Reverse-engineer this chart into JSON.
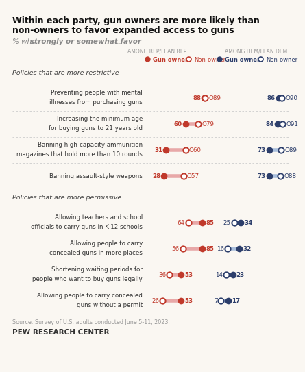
{
  "title_line1": "Within each party, gun owners are more likely than",
  "title_line2": "non-owners to favor expanded access to guns",
  "subtitle_plain": "% who ",
  "subtitle_bold_italic": "strongly or somewhat favor",
  "subtitle_end": " ...",
  "legend_left_label": "AMONG REP/LEAN REP",
  "legend_right_label": "AMONG DEM/LEAN DEM",
  "rep_gun_color": "#c0392b",
  "rep_nonown_color": "#e8a8a8",
  "dem_gun_color": "#2c3e6b",
  "dem_nonown_color": "#a8bedc",
  "section1_label": "Policies that are more restrictive",
  "section2_label": "Policies that are more permissive",
  "policies": [
    {
      "label_line1": "Preventing people with mental",
      "label_line2": "illnesses from purchasing guns",
      "rep_gun": 88,
      "rep_nonown": 89,
      "dem_gun": 86,
      "dem_nonown": 90,
      "section": 1
    },
    {
      "label_line1": "Increasing the minimum age",
      "label_line2": "for buying guns to 21 years old",
      "rep_gun": 60,
      "rep_nonown": 79,
      "dem_gun": 84,
      "dem_nonown": 91,
      "section": 1
    },
    {
      "label_line1": "Banning high-capacity ammunition",
      "label_line2": "magazines that hold more than 10 rounds",
      "rep_gun": 31,
      "rep_nonown": 60,
      "dem_gun": 73,
      "dem_nonown": 89,
      "section": 1
    },
    {
      "label_line1": "Banning assault-style weapons",
      "label_line2": "",
      "rep_gun": 28,
      "rep_nonown": 57,
      "dem_gun": 73,
      "dem_nonown": 88,
      "section": 1
    },
    {
      "label_line1": "Allowing teachers and school",
      "label_line2": "officials to carry guns in K-12 schools",
      "rep_gun": 85,
      "rep_nonown": 64,
      "dem_gun": 34,
      "dem_nonown": 25,
      "section": 2
    },
    {
      "label_line1": "Allowing people to carry",
      "label_line2": "concealed guns in more places",
      "rep_gun": 85,
      "rep_nonown": 56,
      "dem_gun": 32,
      "dem_nonown": 16,
      "section": 2
    },
    {
      "label_line1": "Shortening waiting periods for",
      "label_line2": "people who want to buy guns legally",
      "rep_gun": 53,
      "rep_nonown": 36,
      "dem_gun": 23,
      "dem_nonown": 14,
      "section": 2
    },
    {
      "label_line1": "Allowing people to carry concealed",
      "label_line2": "guns without a permit",
      "rep_gun": 53,
      "rep_nonown": 26,
      "dem_gun": 17,
      "dem_nonown": 7,
      "section": 2
    }
  ],
  "source_text": "Source: Survey of U.S. adults conducted June 5-11, 2023.",
  "footer_text": "PEW RESEARCH CENTER",
  "background_color": "#faf7f2"
}
